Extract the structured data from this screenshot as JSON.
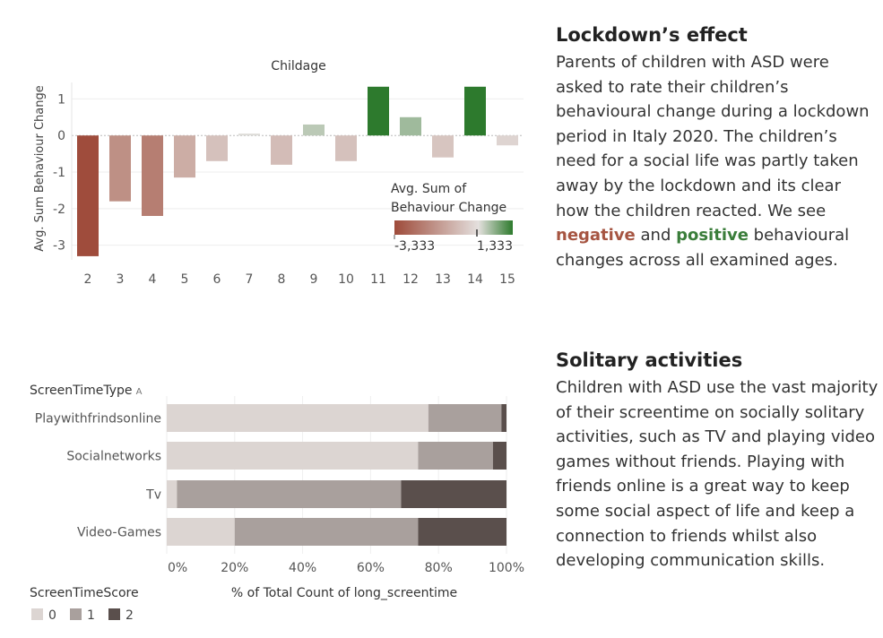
{
  "section1": {
    "heading": "Lockdown’s effect",
    "paragraph": {
      "text_before": "Parents of children with ASD were asked to rate their children’s behavioural change during a lockdown period in Italy 2020. The children’s need for a social life was partly taken away by the lockdown and its clear how the children reacted. We see ",
      "negative_word": "negative",
      "text_middle": " and ",
      "positive_word": "positive",
      "text_after": " behavioural changes across all examined ages."
    }
  },
  "section2": {
    "heading": "Solitary activities",
    "paragraph": "Children with ASD use the vast majority of their screentime on socially solitary activities, such as TV and playing video games without friends. Playing with friends online is a great way to keep some social aspect of life and keep a connection to friends whilst also developing communication skills."
  },
  "colors": {
    "negative_full": "#9e4b3a",
    "neutral": "#e4e0de",
    "positive_full": "#2d7a2d",
    "score0": "#dcd5d2",
    "score1": "#a9a09d",
    "score2": "#5a4f4c"
  },
  "chart_data": [
    {
      "type": "bar",
      "title": "Childage",
      "ylabel": "Avg. Sum Behaviour Change",
      "categories": [
        "2",
        "3",
        "4",
        "5",
        "6",
        "7",
        "8",
        "9",
        "10",
        "11",
        "12",
        "13",
        "14",
        "15"
      ],
      "values": [
        -3.3,
        -1.8,
        -2.2,
        -1.15,
        -0.7,
        0.05,
        -0.8,
        0.3,
        -0.7,
        1.333,
        0.5,
        -0.6,
        1.333,
        -0.27
      ],
      "ylim": [
        -3.4,
        1.45
      ],
      "yticks": [
        1,
        0,
        -1,
        -2,
        -3
      ],
      "ytick_labels": [
        "1",
        "0",
        "-1",
        "-2",
        "-3"
      ],
      "color_legend": {
        "title_line1": "Avg. Sum of",
        "title_line2": "Behaviour Change",
        "min_label": "-3,333",
        "max_label": "1,333",
        "min": -3.333,
        "max": 1.333
      },
      "grid": true
    },
    {
      "type": "bar",
      "orientation": "horizontal",
      "stacked_percent": true,
      "row_header": "ScreenTimeType",
      "categories": [
        "Playwithfrindsonline",
        "Socialnetworks",
        "Tv",
        "Video-Games"
      ],
      "xlabel": "% of Total Count of long_screentime",
      "xticks": [
        "0%",
        "20%",
        "40%",
        "60%",
        "80%",
        "100%"
      ],
      "legend_title": "ScreenTimeScore",
      "series": [
        {
          "name": "0",
          "values": [
            77,
            74,
            3,
            20
          ]
        },
        {
          "name": "1",
          "values": [
            21.5,
            22,
            66,
            54
          ]
        },
        {
          "name": "2",
          "values": [
            1.5,
            4,
            31,
            26
          ]
        }
      ]
    }
  ]
}
